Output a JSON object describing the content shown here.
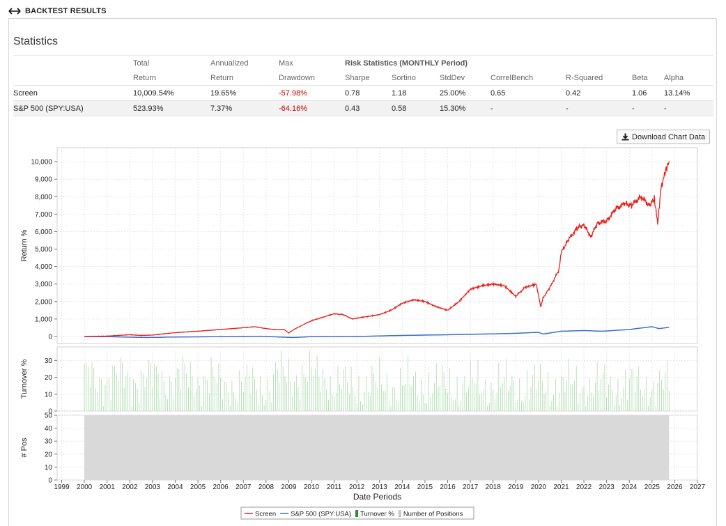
{
  "header": {
    "title": "BACKTEST RESULTS",
    "icon": "left-right-arrow-icon"
  },
  "panel": {
    "title": "Statistics"
  },
  "stats": {
    "header_row1": [
      "Total",
      "Annualized",
      "Max",
      "Risk Statistics (MONTHLY Period)"
    ],
    "header_row2": [
      "Return",
      "Return",
      "Drawdown",
      "Sharpe",
      "Sortino",
      "StdDev",
      "CorrelBench",
      "R-Squared",
      "Beta",
      "Alpha"
    ],
    "rows": [
      {
        "name": "Screen",
        "total": "10,009.54%",
        "annualized": "19.65%",
        "maxdd": "-57.98%",
        "sharpe": "0.78",
        "sortino": "1.18",
        "stddev": "25.00%",
        "correl": "0.65",
        "rsq": "0.42",
        "beta": "1.06",
        "alpha": "13.14%"
      },
      {
        "name": "S&P 500 (SPY:USA)",
        "total": "523.93%",
        "annualized": "7.37%",
        "maxdd": "-64.16%",
        "sharpe": "0.43",
        "sortino": "0.58",
        "stddev": "15.30%",
        "correl": "-",
        "rsq": "-",
        "beta": "-",
        "alpha": "-"
      }
    ]
  },
  "download_button": {
    "label": "Download Chart Data",
    "icon": "download-icon"
  },
  "colors": {
    "screen": "#e8201c",
    "benchmark": "#3d6fd1",
    "turnover": "#9fd49f",
    "positions": "#d9d9d9",
    "negative": "#cc0000"
  },
  "chart_data": [
    {
      "type": "line",
      "ylabel": "Return %",
      "ylim": [
        -400,
        10800
      ],
      "yticks": [
        "0",
        "1,000",
        "2,000",
        "3,000",
        "4,000",
        "5,000",
        "6,000",
        "7,000",
        "8,000",
        "9,000",
        "10,000"
      ],
      "grid": true,
      "series": [
        {
          "name": "Screen",
          "x": [
            2000.0,
            2001.0,
            2001.5,
            2002.0,
            2002.5,
            2003.0,
            2003.5,
            2004.0,
            2005.0,
            2006.0,
            2007.0,
            2007.5,
            2008.0,
            2008.5,
            2008.8,
            2009.0,
            2009.2,
            2009.6,
            2010.0,
            2010.5,
            2011.0,
            2011.4,
            2011.8,
            2012.0,
            2012.5,
            2013.0,
            2013.5,
            2014.0,
            2014.5,
            2015.0,
            2015.5,
            2016.0,
            2016.5,
            2017.0,
            2017.5,
            2018.0,
            2018.5,
            2019.0,
            2019.4,
            2019.9,
            2020.1,
            2020.2,
            2020.5,
            2020.9,
            2021.0,
            2021.3,
            2021.7,
            2022.0,
            2022.3,
            2022.6,
            2023.0,
            2023.4,
            2023.8,
            2024.1,
            2024.5,
            2024.9,
            2025.1,
            2025.25,
            2025.4,
            2025.6,
            2025.75
          ],
          "values": [
            0,
            20,
            60,
            100,
            60,
            80,
            150,
            220,
            300,
            400,
            500,
            560,
            450,
            380,
            400,
            200,
            380,
            650,
            900,
            1100,
            1300,
            1250,
            1000,
            1050,
            1150,
            1250,
            1500,
            1900,
            2100,
            2000,
            1700,
            1500,
            2000,
            2700,
            2900,
            3000,
            2900,
            2300,
            2800,
            3000,
            1700,
            2200,
            2800,
            3800,
            4800,
            5500,
            6200,
            6400,
            5700,
            6500,
            6600,
            7300,
            7600,
            7500,
            8000,
            7500,
            7900,
            6500,
            8500,
            9500,
            10009
          ]
        },
        {
          "name": "S&P 500 (SPY:USA)",
          "x": [
            2000.0,
            2001.0,
            2002.0,
            2002.8,
            2004.0,
            2006.0,
            2007.8,
            2009.2,
            2010.0,
            2012.0,
            2014.0,
            2016.0,
            2018.0,
            2019.0,
            2020.0,
            2020.2,
            2021.0,
            2022.0,
            2022.8,
            2024.0,
            2025.0,
            2025.3,
            2025.75
          ],
          "values": [
            0,
            -10,
            -40,
            -60,
            -30,
            -10,
            10,
            -60,
            -10,
            0,
            60,
            100,
            150,
            180,
            240,
            140,
            300,
            340,
            300,
            400,
            560,
            450,
            524
          ]
        }
      ]
    },
    {
      "type": "bar",
      "ylabel": "Turnover %",
      "ylim": [
        0,
        38
      ],
      "yticks": [
        "0",
        "10",
        "20",
        "30"
      ],
      "grid": true,
      "series": [
        {
          "name": "Turnover %",
          "note_range": "monthly bars 2000–2025.75, typically 10–30%"
        }
      ]
    },
    {
      "type": "area",
      "ylabel": "# Pos",
      "ylim": [
        0,
        50
      ],
      "yticks": [
        "0",
        "10",
        "20",
        "30",
        "40",
        "50"
      ],
      "grid": true,
      "series": [
        {
          "name": "Number of Positions",
          "x": [
            2000.0,
            2025.75
          ],
          "values": [
            50,
            50
          ]
        }
      ]
    }
  ],
  "x_axis": {
    "label": "Date Periods",
    "range": [
      1998.8,
      2027.0
    ],
    "ticks": [
      "1999",
      "2000",
      "2001",
      "2002",
      "2003",
      "2004",
      "2005",
      "2006",
      "2007",
      "2008",
      "2009",
      "2010",
      "2011",
      "2012",
      "2013",
      "2014",
      "2015",
      "2016",
      "2017",
      "2018",
      "2019",
      "2020",
      "2021",
      "2022",
      "2023",
      "2024",
      "2025",
      "2026",
      "2027"
    ]
  },
  "legend": [
    {
      "label": "Screen",
      "kind": "line",
      "color": "#e8201c"
    },
    {
      "label": "S&P 500 (SPY:USA)",
      "kind": "line",
      "color": "#3d6fd1"
    },
    {
      "label": "Turnover %",
      "kind": "box",
      "color": "#2e8b2e"
    },
    {
      "label": "Number of Positions",
      "kind": "box",
      "color": "#c8c8c8"
    }
  ]
}
